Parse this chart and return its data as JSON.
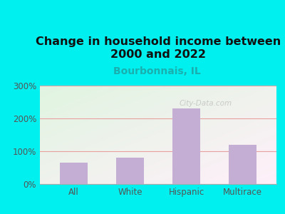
{
  "title": "Change in household income between\n2000 and 2022",
  "subtitle": "Bourbonnais, IL",
  "categories": [
    "All",
    "White",
    "Hispanic",
    "Multirace"
  ],
  "values": [
    65,
    80,
    230,
    120
  ],
  "bar_color": "#c4aed4",
  "background_outer": "#00efef",
  "watermark": "City-Data.com",
  "yticks": [
    0,
    100,
    200,
    300
  ],
  "ytick_labels": [
    "0%",
    "100%",
    "200%",
    "300%"
  ],
  "ylim": [
    0,
    300
  ],
  "title_fontsize": 11.5,
  "subtitle_fontsize": 10,
  "tick_color": "#555555",
  "grid_color": "#e8a0a0",
  "title_color": "#111111",
  "subtitle_color": "#1aafaf"
}
